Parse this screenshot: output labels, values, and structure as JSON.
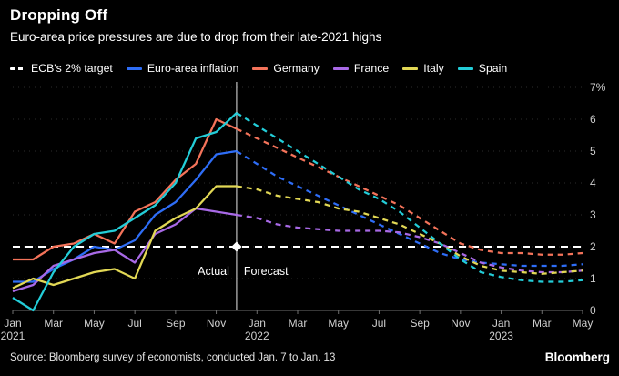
{
  "header": {
    "title": "Dropping Off",
    "subtitle": "Euro-area price pressures are due to drop from their late-2021 highs"
  },
  "footer": {
    "source": "Source: Bloomberg survey of economists, conducted Jan. 7 to Jan. 13",
    "brand": "Bloomberg"
  },
  "chart_data": {
    "type": "line",
    "title": "Dropping Off",
    "ylim": [
      0,
      7
    ],
    "grid": "dotted-horizontal",
    "legend_position": "top",
    "actual_end_index": 11,
    "annotations": {
      "actual_label": "Actual",
      "forecast_label": "Forecast"
    },
    "categories": [
      "Jan 2021",
      "Feb 2021",
      "Mar 2021",
      "Apr 2021",
      "May 2021",
      "Jun 2021",
      "Jul 2021",
      "Aug 2021",
      "Sep 2021",
      "Oct 2021",
      "Nov 2021",
      "Dec 2021",
      "Jan 2022",
      "Feb 2022",
      "Mar 2022",
      "Apr 2022",
      "May 2022",
      "Jun 2022",
      "Jul 2022",
      "Aug 2022",
      "Sep 2022",
      "Oct 2022",
      "Nov 2022",
      "Dec 2022",
      "Jan 2023",
      "Feb 2023",
      "Mar 2023",
      "Apr 2023",
      "May 2023"
    ],
    "x_ticks": [
      {
        "index": 0,
        "label": "Jan",
        "year": "2021"
      },
      {
        "index": 2,
        "label": "Mar"
      },
      {
        "index": 4,
        "label": "May"
      },
      {
        "index": 6,
        "label": "Jul"
      },
      {
        "index": 8,
        "label": "Sep"
      },
      {
        "index": 10,
        "label": "Nov"
      },
      {
        "index": 12,
        "label": "Jan",
        "year": "2022"
      },
      {
        "index": 14,
        "label": "Mar"
      },
      {
        "index": 16,
        "label": "May"
      },
      {
        "index": 18,
        "label": "Jul"
      },
      {
        "index": 20,
        "label": "Sep"
      },
      {
        "index": 22,
        "label": "Nov"
      },
      {
        "index": 24,
        "label": "Jan",
        "year": "2023"
      },
      {
        "index": 26,
        "label": "Mar"
      },
      {
        "index": 28,
        "label": "May"
      }
    ],
    "y_ticks": [
      {
        "value": 0,
        "label": "0"
      },
      {
        "value": 1,
        "label": "1"
      },
      {
        "value": 2,
        "label": "2"
      },
      {
        "value": 3,
        "label": "3"
      },
      {
        "value": 4,
        "label": "4"
      },
      {
        "value": 5,
        "label": "5"
      },
      {
        "value": 6,
        "label": "6"
      },
      {
        "value": 7,
        "label": "7%"
      }
    ],
    "series": [
      {
        "name": "ECB's 2% target",
        "color": "#ffffff",
        "role": "target",
        "values": [
          2,
          2,
          2,
          2,
          2,
          2,
          2,
          2,
          2,
          2,
          2,
          2,
          2,
          2,
          2,
          2,
          2,
          2,
          2,
          2,
          2,
          2,
          2,
          2,
          2,
          2,
          2,
          2,
          2
        ]
      },
      {
        "name": "Euro-area inflation",
        "color": "#2e6df6",
        "role": "series",
        "values": [
          0.9,
          0.9,
          1.3,
          1.6,
          2.0,
          1.9,
          2.2,
          3.0,
          3.4,
          4.1,
          4.9,
          5.0,
          4.6,
          4.2,
          3.9,
          3.6,
          3.3,
          3.0,
          2.7,
          2.4,
          2.1,
          1.8,
          1.6,
          1.5,
          1.45,
          1.4,
          1.4,
          1.4,
          1.45
        ]
      },
      {
        "name": "Germany",
        "color": "#f4735a",
        "role": "series",
        "values": [
          1.6,
          1.6,
          2.0,
          2.1,
          2.4,
          2.1,
          3.1,
          3.4,
          4.1,
          4.6,
          6.0,
          5.7,
          5.4,
          5.1,
          4.8,
          4.5,
          4.2,
          3.9,
          3.6,
          3.3,
          2.9,
          2.5,
          2.1,
          1.9,
          1.8,
          1.8,
          1.75,
          1.75,
          1.8
        ]
      },
      {
        "name": "France",
        "color": "#a869e6",
        "role": "series",
        "values": [
          0.6,
          0.8,
          1.4,
          1.6,
          1.8,
          1.9,
          1.5,
          2.4,
          2.7,
          3.2,
          3.1,
          3.0,
          2.9,
          2.7,
          2.6,
          2.55,
          2.5,
          2.5,
          2.5,
          2.45,
          2.3,
          2.1,
          1.8,
          1.5,
          1.35,
          1.25,
          1.2,
          1.2,
          1.25
        ]
      },
      {
        "name": "Italy",
        "color": "#e2d855",
        "role": "series",
        "values": [
          0.7,
          1.0,
          0.8,
          1.0,
          1.2,
          1.3,
          1.0,
          2.5,
          2.9,
          3.2,
          3.9,
          3.9,
          3.8,
          3.6,
          3.5,
          3.4,
          3.2,
          3.1,
          2.9,
          2.7,
          2.4,
          2.1,
          1.7,
          1.4,
          1.25,
          1.2,
          1.15,
          1.2,
          1.25
        ]
      },
      {
        "name": "Spain",
        "color": "#23cdd8",
        "role": "series",
        "values": [
          0.4,
          0.0,
          1.2,
          2.0,
          2.4,
          2.5,
          2.9,
          3.3,
          4.0,
          5.4,
          5.6,
          6.2,
          5.8,
          5.4,
          5.0,
          4.6,
          4.2,
          3.8,
          3.5,
          3.1,
          2.6,
          2.1,
          1.6,
          1.2,
          1.05,
          0.95,
          0.9,
          0.9,
          0.95
        ]
      }
    ]
  }
}
